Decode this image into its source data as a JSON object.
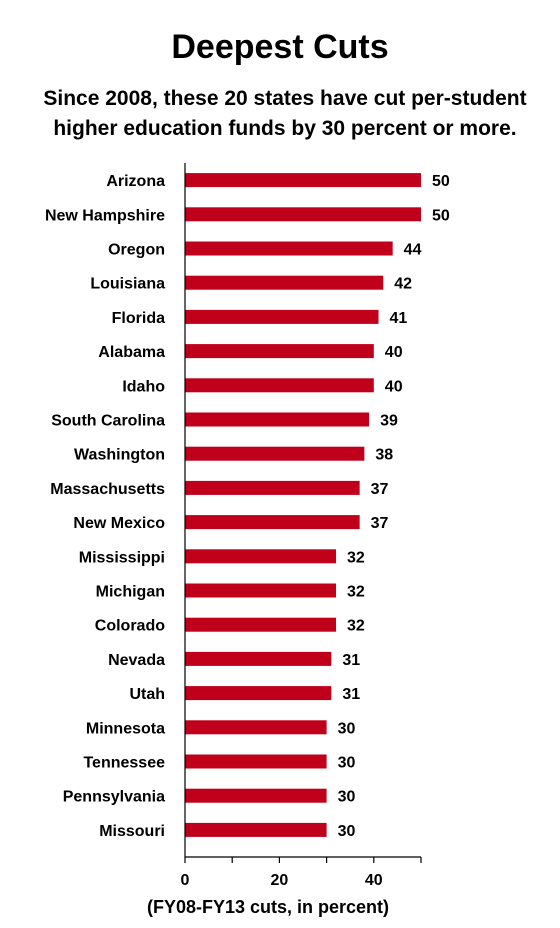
{
  "title": "Deepest Cuts",
  "subtitle": "Since 2008, these 20 states have cut per-student higher education funds by 30 percent or more.",
  "chart_data": {
    "type": "bar",
    "orientation": "horizontal",
    "categories": [
      "Arizona",
      "New Hampshire",
      "Oregon",
      "Louisiana",
      "Florida",
      "Alabama",
      "Idaho",
      "South Carolina",
      "Washington",
      "Massachusetts",
      "New Mexico",
      "Mississippi",
      "Michigan",
      "Colorado",
      "Nevada",
      "Utah",
      "Minnesota",
      "Tennessee",
      "Pennsylvania",
      "Missouri"
    ],
    "values": [
      50,
      50,
      44,
      42,
      41,
      40,
      40,
      39,
      38,
      37,
      37,
      32,
      32,
      32,
      31,
      31,
      30,
      30,
      30,
      30
    ],
    "data_labels": [
      "50",
      "50",
      "44",
      "42",
      "41",
      "40",
      "40",
      "39",
      "38",
      "37",
      "37",
      "32",
      "32",
      "32",
      "31",
      "31",
      "30",
      "30",
      "30",
      "30"
    ],
    "xlabel": "(FY08-FY13 cuts, in percent)",
    "ylabel": "",
    "xlim": [
      0,
      50
    ],
    "xticks": [
      0,
      20,
      40
    ],
    "grid": false,
    "bar_color": "#C0001A"
  }
}
